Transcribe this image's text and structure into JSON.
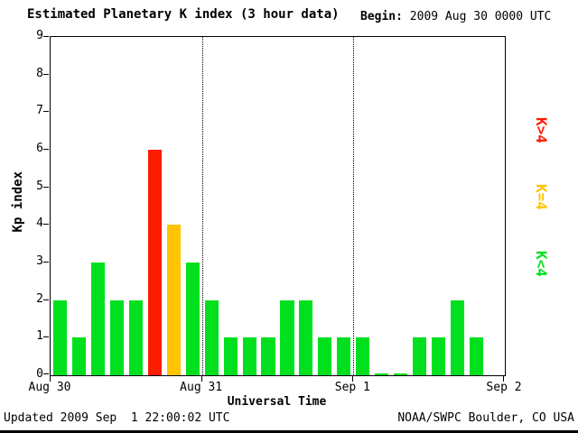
{
  "header": {
    "title": "Estimated Planetary K index (3 hour data)",
    "begin_label": "Begin:",
    "begin_value": "2009 Aug 30 0000 UTC"
  },
  "footer": {
    "updated": "Updated 2009 Sep  1 22:00:02 UTC",
    "credit": "NOAA/SWPC Boulder, CO USA"
  },
  "chart_data": {
    "type": "bar",
    "title": "Estimated Planetary K index (3 hour data)",
    "ylabel": "Kp index",
    "xlabel": "Universal Time",
    "ylim": [
      0,
      9
    ],
    "y_ticks": [
      0,
      1,
      2,
      3,
      4,
      5,
      6,
      7,
      8,
      9
    ],
    "x_tick_labels": [
      "Aug 30",
      "Aug 31",
      "Sep 1",
      "Sep 2"
    ],
    "days": 3,
    "slots_per_day": 8,
    "values": [
      2,
      1,
      3,
      2,
      2,
      6,
      4,
      3,
      2,
      1,
      1,
      1,
      2,
      2,
      1,
      1,
      1,
      0,
      0,
      1,
      1,
      2,
      1
    ],
    "threshold": 4,
    "colors": {
      "low": "#00e01e",
      "mid": "#fec301",
      "high": "#fd1b01"
    },
    "legend": [
      {
        "label": "K>4",
        "color": "#fd1b01"
      },
      {
        "label": "K=4",
        "color": "#fec301"
      },
      {
        "label": "K<4",
        "color": "#00e01e"
      }
    ],
    "grid": "day-boundary-dotted-lines",
    "legend_position": "right-rotated"
  }
}
